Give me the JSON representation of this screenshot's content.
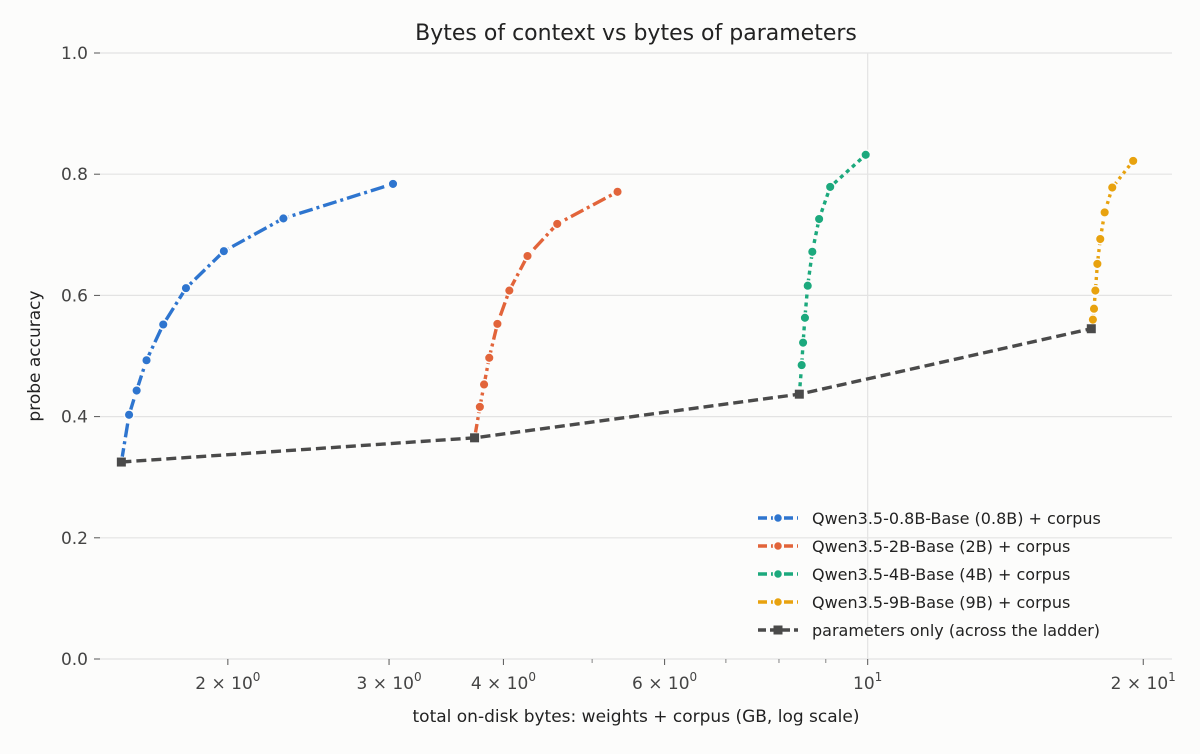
{
  "chart_data": {
    "type": "line",
    "title": "Bytes of context vs bytes of parameters",
    "xlabel": "total on-disk bytes: weights + corpus (GB, log scale)",
    "ylabel": "probe accuracy",
    "x_scale": "log",
    "xlim": [
      1.45,
      21.5
    ],
    "ylim": [
      0.0,
      1.0
    ],
    "grid": true,
    "legend_position": "lower-right",
    "x_ticks": [
      {
        "value": 2,
        "label": "2 × 10",
        "exp": "0"
      },
      {
        "value": 3,
        "label": "3 × 10",
        "exp": "0"
      },
      {
        "value": 4,
        "label": "4 × 10",
        "exp": "0"
      },
      {
        "value": 6,
        "label": "6 × 10",
        "exp": "0"
      },
      {
        "value": 10,
        "label": "10",
        "exp": "1"
      },
      {
        "value": 20,
        "label": "2 × 10",
        "exp": "1"
      }
    ],
    "y_ticks": [
      {
        "value": 0.0,
        "label": "0.0"
      },
      {
        "value": 0.2,
        "label": "0.2"
      },
      {
        "value": 0.4,
        "label": "0.4"
      },
      {
        "value": 0.6,
        "label": "0.6"
      },
      {
        "value": 0.8,
        "label": "0.8"
      },
      {
        "value": 1.0,
        "label": "1.0"
      }
    ],
    "series": [
      {
        "name": "Qwen3.5-0.8B-Base (0.8B) + corpus",
        "color": "#2e75cf",
        "dash": "14,4,3,4",
        "marker": "circle",
        "x": [
          1.53,
          1.56,
          1.59,
          1.63,
          1.7,
          1.8,
          1.98,
          2.3,
          3.03
        ],
        "y": [
          0.325,
          0.403,
          0.443,
          0.493,
          0.552,
          0.612,
          0.673,
          0.727,
          0.784
        ]
      },
      {
        "name": "Qwen3.5-2B-Base (2B) + corpus",
        "color": "#e2643a",
        "dash": "14,4,3,4",
        "marker": "circle",
        "x": [
          3.72,
          3.77,
          3.81,
          3.86,
          3.94,
          4.06,
          4.25,
          4.58,
          5.33
        ],
        "y": [
          0.365,
          0.416,
          0.453,
          0.497,
          0.553,
          0.608,
          0.665,
          0.718,
          0.771
        ]
      },
      {
        "name": "Qwen3.5-4B-Base (4B) + corpus",
        "color": "#1ca97d",
        "dash": "4,4",
        "marker": "circle",
        "x": [
          8.42,
          8.47,
          8.5,
          8.54,
          8.6,
          8.7,
          8.85,
          9.1,
          9.95
        ],
        "y": [
          0.437,
          0.485,
          0.522,
          0.563,
          0.616,
          0.672,
          0.726,
          0.779,
          0.832
        ]
      },
      {
        "name": "Qwen3.5-9B-Base (9B) + corpus",
        "color": "#e8a20e",
        "dash": "3,4",
        "marker": "circle",
        "x": [
          17.55,
          17.62,
          17.67,
          17.73,
          17.82,
          17.95,
          18.15,
          18.5,
          19.5
        ],
        "y": [
          0.545,
          0.56,
          0.578,
          0.608,
          0.652,
          0.693,
          0.737,
          0.778,
          0.822
        ]
      },
      {
        "name": "parameters only (across the ladder)",
        "color": "#4a4a4a",
        "dash": "10,5",
        "marker": "square",
        "x": [
          1.53,
          3.72,
          8.42,
          17.55
        ],
        "y": [
          0.325,
          0.365,
          0.437,
          0.545
        ]
      }
    ]
  }
}
